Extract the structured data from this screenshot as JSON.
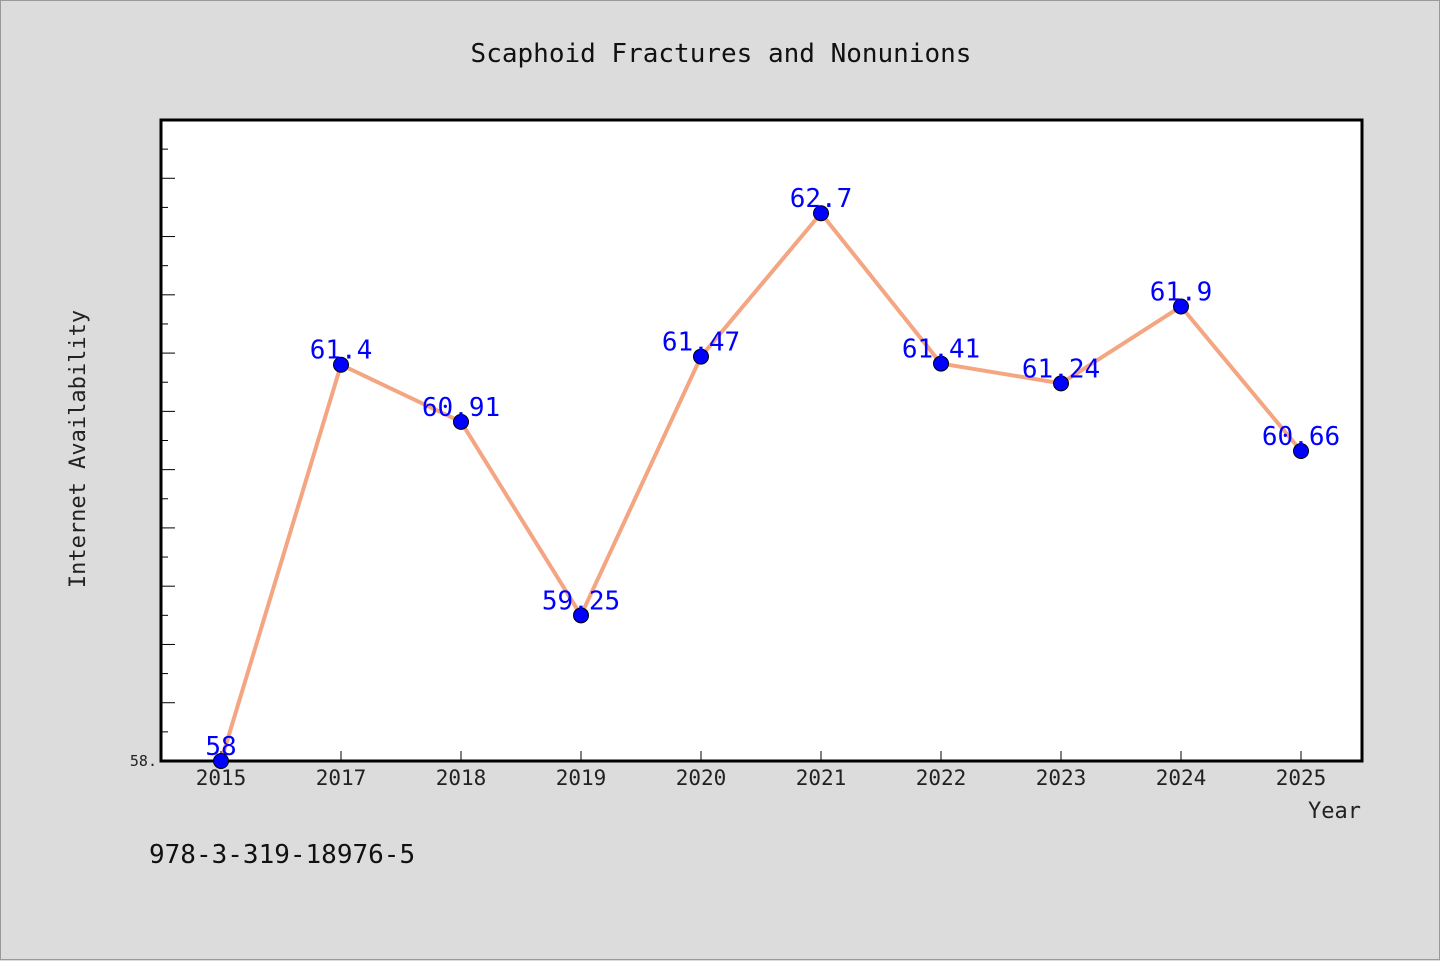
{
  "chart_data": {
    "type": "line",
    "title": "Scaphoid Fractures and Nonunions",
    "xlabel": "Year",
    "ylabel": "Internet Availability",
    "categories": [
      "2015",
      "2017",
      "2018",
      "2019",
      "2020",
      "2021",
      "2022",
      "2023",
      "2024",
      "2025"
    ],
    "series": [
      {
        "values": [
          58,
          61.4,
          60.91,
          59.25,
          61.47,
          62.7,
          61.41,
          61.24,
          61.9,
          60.66
        ],
        "labels": [
          "58",
          "61.4",
          "60.91",
          "59.25",
          "61.47",
          "62.7",
          "61.41",
          "61.24",
          "61.9",
          "60.66"
        ]
      }
    ],
    "ylim": [
      58,
      63.5
    ],
    "yticks_labeled": [
      {
        "value": 58,
        "label": "58."
      }
    ],
    "grid": false,
    "line_color": "#f4a582",
    "marker_color": "#0000ff",
    "label_color": "#0000ff"
  },
  "footer": {
    "isbn": "978-3-319-18976-5"
  }
}
